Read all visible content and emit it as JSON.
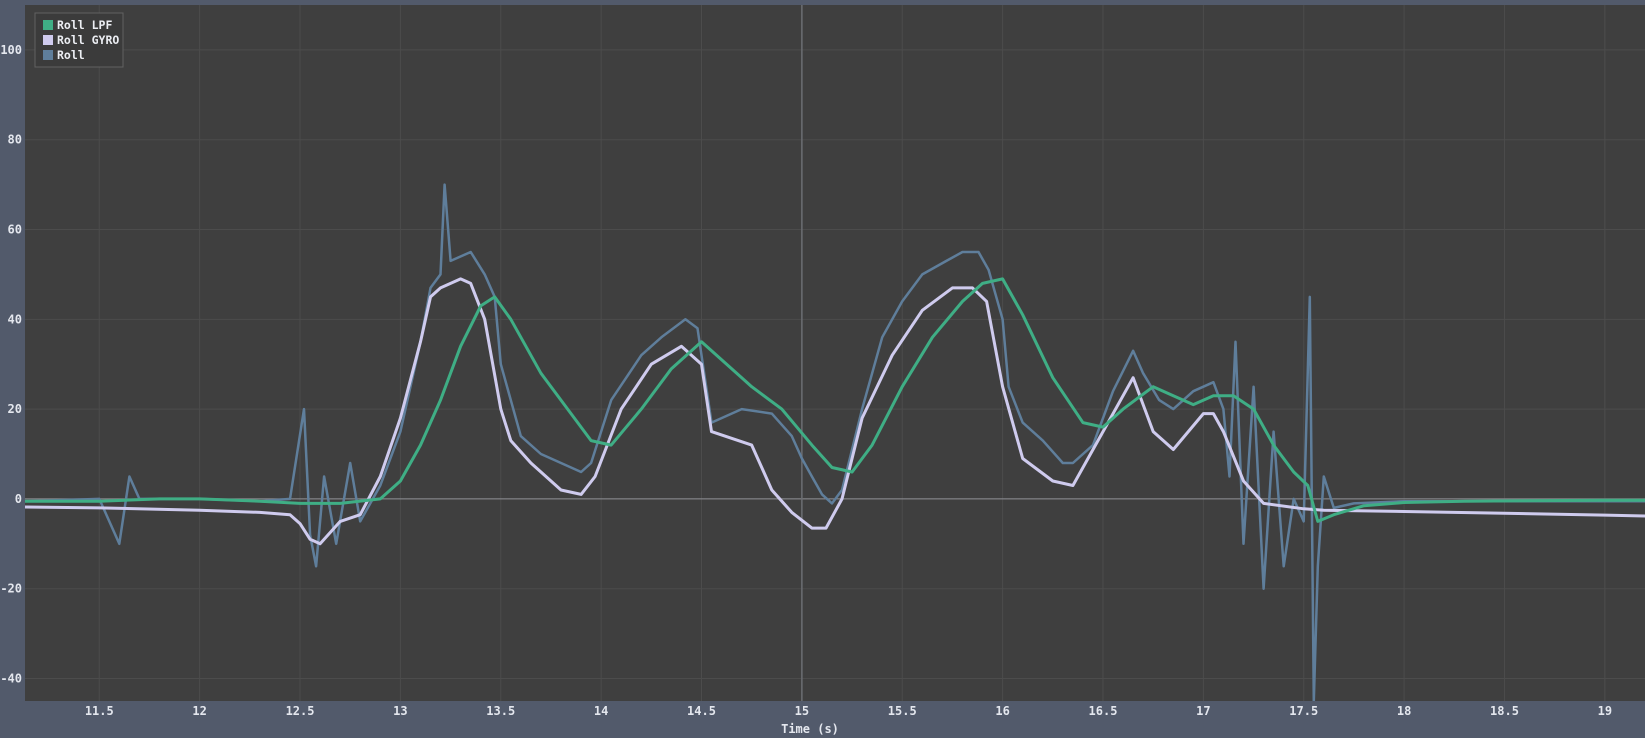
{
  "chart_data": {
    "type": "line",
    "title": "",
    "xlabel": "Time (s)",
    "ylabel": "",
    "xlim": [
      11.13,
      19.2
    ],
    "ylim": [
      -45,
      110
    ],
    "x_ticks": [
      11.5,
      12,
      12.5,
      13,
      13.5,
      14,
      14.5,
      15,
      15.5,
      16,
      16.5,
      17,
      17.5,
      18,
      18.5,
      19
    ],
    "x_tick_labels": [
      "11.5",
      "12",
      "12.5",
      "13",
      "13.5",
      "14",
      "14.5",
      "15",
      "15.5",
      "16",
      "16.5",
      "17",
      "17.5",
      "18",
      "18.5",
      "19"
    ],
    "y_ticks": [
      -40,
      -20,
      0,
      20,
      40,
      60,
      80,
      100
    ],
    "y_tick_labels": [
      "-40",
      "-20",
      "0",
      "20",
      "40",
      "60",
      "80",
      "100"
    ],
    "grid": true,
    "cursor_x": 15,
    "legend_position": "top-left",
    "colors": {
      "background": "#3f3f3f",
      "frame": "#525a6b",
      "grid": "#4c4c4c",
      "zero_line": "#8f9196",
      "cursor": "#6b6d72"
    },
    "series": [
      {
        "name": "Roll LPF",
        "color": "#3fae85",
        "x": [
          11.13,
          11.5,
          11.8,
          12.0,
          12.3,
          12.5,
          12.7,
          12.9,
          13.0,
          13.1,
          13.2,
          13.3,
          13.4,
          13.47,
          13.55,
          13.7,
          13.85,
          13.95,
          14.05,
          14.2,
          14.35,
          14.5,
          14.6,
          14.75,
          14.9,
          15.05,
          15.15,
          15.25,
          15.35,
          15.5,
          15.65,
          15.8,
          15.9,
          16.0,
          16.1,
          16.25,
          16.4,
          16.5,
          16.6,
          16.75,
          16.85,
          16.95,
          17.05,
          17.15,
          17.25,
          17.35,
          17.45,
          17.52,
          17.57,
          17.65,
          17.8,
          18.0,
          18.3,
          18.6,
          19.0,
          19.2
        ],
        "y": [
          -0.5,
          -0.5,
          0,
          0,
          -0.5,
          -1,
          -1,
          0,
          4,
          12,
          22,
          34,
          43,
          45,
          40,
          28,
          19,
          13,
          12,
          20,
          29,
          35,
          31,
          25,
          20,
          12,
          7,
          6,
          12,
          25,
          36,
          44,
          48,
          49,
          41,
          27,
          17,
          16,
          20,
          25,
          23,
          21,
          23,
          23,
          20,
          12,
          6,
          3,
          -5,
          -3.5,
          -1.5,
          -0.8,
          -0.5,
          -0.4,
          -0.3,
          -0.3
        ]
      },
      {
        "name": "Roll GYRO",
        "color": "#cfcbee",
        "x": [
          11.13,
          11.5,
          12.0,
          12.3,
          12.45,
          12.5,
          12.55,
          12.6,
          12.7,
          12.8,
          12.9,
          13.0,
          13.1,
          13.15,
          13.2,
          13.3,
          13.35,
          13.42,
          13.5,
          13.55,
          13.65,
          13.8,
          13.9,
          13.97,
          14.1,
          14.25,
          14.4,
          14.5,
          14.55,
          14.75,
          14.85,
          14.95,
          15.05,
          15.12,
          15.2,
          15.3,
          15.45,
          15.6,
          15.75,
          15.85,
          15.92,
          16.0,
          16.1,
          16.25,
          16.35,
          16.5,
          16.65,
          16.75,
          16.85,
          17.0,
          17.05,
          17.1,
          17.2,
          17.3,
          17.5,
          17.6,
          18.0,
          18.5,
          19.0,
          19.2
        ],
        "y": [
          -1.8,
          -2,
          -2.5,
          -3,
          -3.5,
          -5.5,
          -9,
          -10,
          -5,
          -3.5,
          5,
          18,
          35,
          45,
          47,
          49,
          48,
          40,
          20,
          13,
          8,
          2,
          1,
          5,
          20,
          30,
          34,
          30,
          15,
          12,
          2,
          -3,
          -6.5,
          -6.5,
          0,
          18,
          32,
          42,
          47,
          47,
          44,
          25,
          9,
          4,
          3,
          15,
          27,
          15,
          11,
          19,
          19,
          15,
          4,
          -1,
          -2.2,
          -2.5,
          -2.8,
          -3.2,
          -3.6,
          -3.8
        ]
      },
      {
        "name": "Roll",
        "color": "#5f7e9b",
        "x": [
          11.13,
          11.5,
          11.6,
          11.65,
          11.7,
          12.0,
          12.3,
          12.45,
          12.52,
          12.55,
          12.58,
          12.62,
          12.68,
          12.75,
          12.8,
          12.9,
          13.0,
          13.1,
          13.15,
          13.2,
          13.22,
          13.25,
          13.35,
          13.42,
          13.47,
          13.5,
          13.6,
          13.7,
          13.8,
          13.9,
          13.95,
          14.05,
          14.2,
          14.3,
          14.42,
          14.48,
          14.55,
          14.7,
          14.85,
          14.95,
          15.0,
          15.05,
          15.1,
          15.15,
          15.2,
          15.3,
          15.4,
          15.5,
          15.6,
          15.72,
          15.8,
          15.88,
          15.93,
          16.0,
          16.03,
          16.1,
          16.2,
          16.3,
          16.35,
          16.45,
          16.55,
          16.65,
          16.7,
          16.78,
          16.85,
          16.95,
          17.05,
          17.1,
          17.13,
          17.16,
          17.2,
          17.25,
          17.3,
          17.35,
          17.4,
          17.45,
          17.5,
          17.53,
          17.55,
          17.57,
          17.6,
          17.65,
          17.75,
          18.0,
          18.5,
          19.0,
          19.2
        ],
        "y": [
          -0.5,
          0,
          -10,
          5,
          0,
          0,
          -0.5,
          0,
          20,
          -8,
          -15,
          5,
          -10,
          8,
          -5,
          3,
          15,
          35,
          47,
          50,
          70,
          53,
          55,
          50,
          45,
          30,
          14,
          10,
          8,
          6,
          8,
          22,
          32,
          36,
          40,
          38,
          17,
          20,
          19,
          14,
          9,
          5,
          1,
          -1,
          2,
          20,
          36,
          44,
          50,
          53,
          55,
          55,
          51,
          40,
          25,
          17,
          13,
          8,
          8,
          12,
          24,
          33,
          28,
          22,
          20,
          24,
          26,
          20,
          5,
          35,
          -10,
          25,
          -20,
          15,
          -15,
          0,
          -5,
          45,
          -45,
          -15,
          5,
          -2,
          -1,
          -0.5,
          -0.5,
          -0.5,
          -0.5
        ]
      }
    ]
  }
}
